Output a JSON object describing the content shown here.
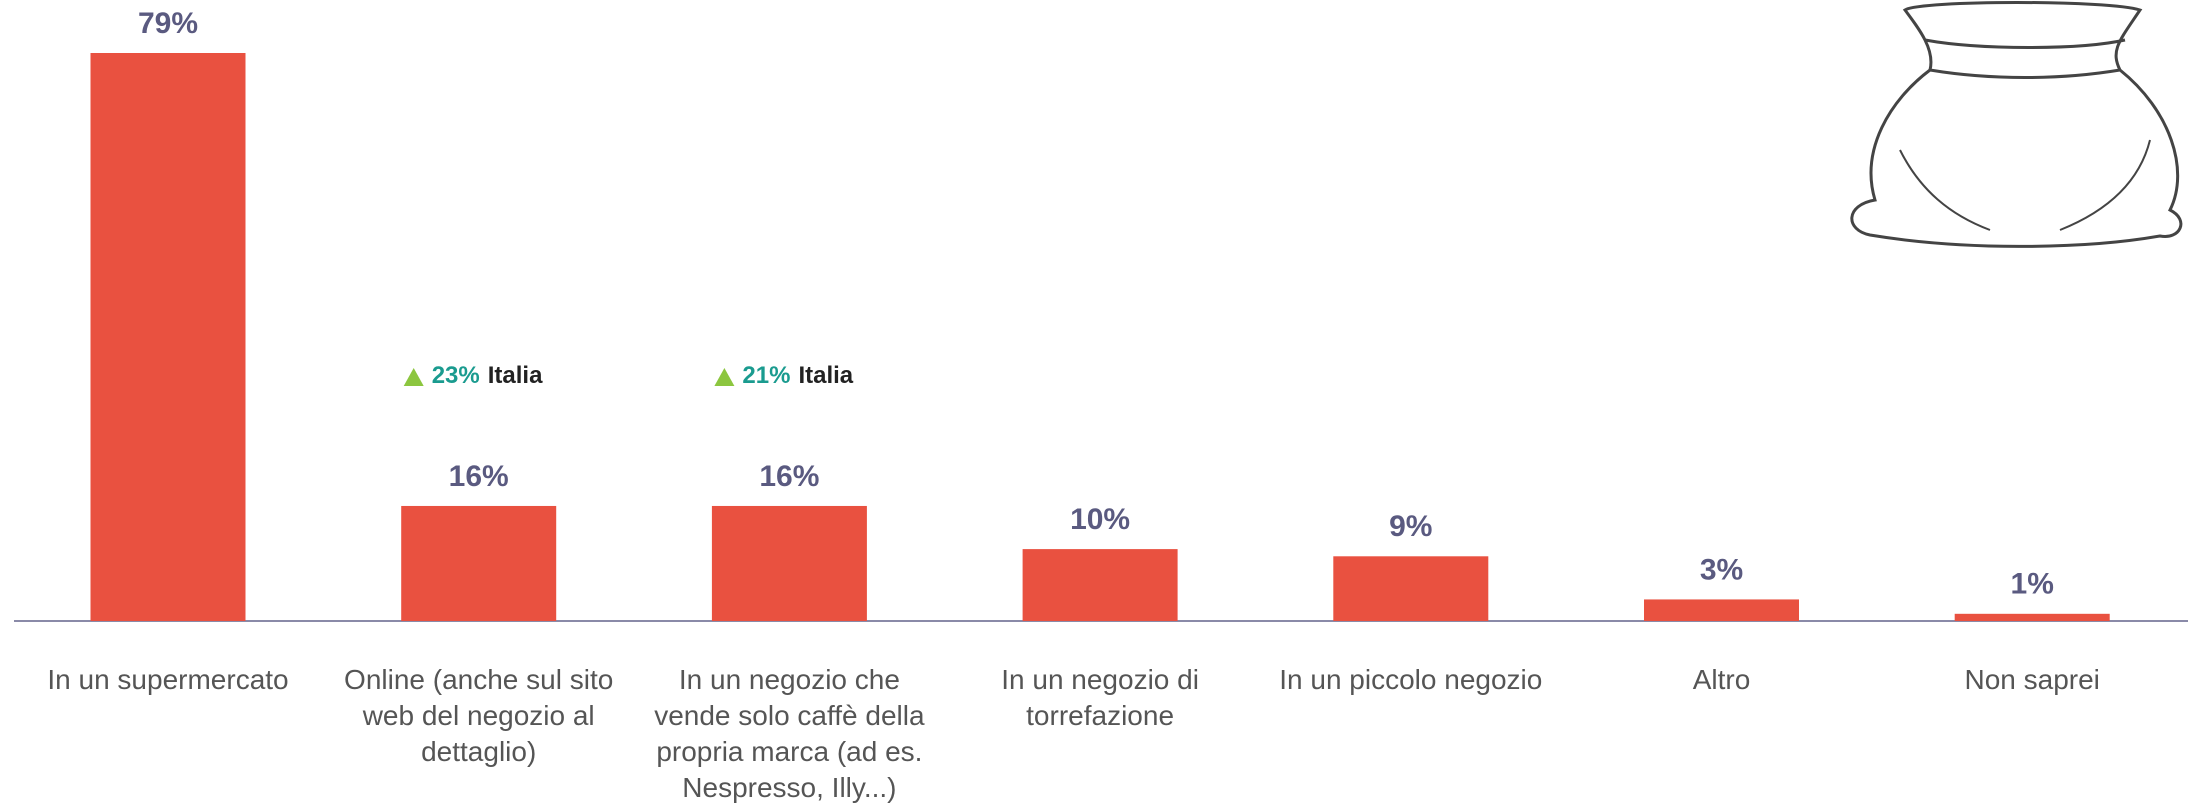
{
  "chart_data": {
    "type": "bar",
    "categories": [
      "In un supermercato",
      "Online (anche sul sito web del negozio al dettaglio)",
      "In un negozio che vende solo caffè della propria marca (ad es. Nespresso, Illy...)",
      "In un negozio di torrefazione",
      "In un piccolo negozio",
      "Altro",
      "Non saprei"
    ],
    "values": [
      79,
      16,
      16,
      10,
      9,
      3,
      1
    ],
    "value_labels": [
      "79%",
      "16%",
      "16%",
      "10%",
      "9%",
      "3%",
      "1%"
    ],
    "color": "#e95140",
    "comparison": {
      "name": "Italia",
      "color": "#1a9b8f",
      "values": [
        null,
        23,
        21,
        null,
        null,
        null,
        null
      ],
      "value_labels": [
        null,
        "23%",
        "21%",
        null,
        null,
        null,
        null
      ]
    }
  }
}
